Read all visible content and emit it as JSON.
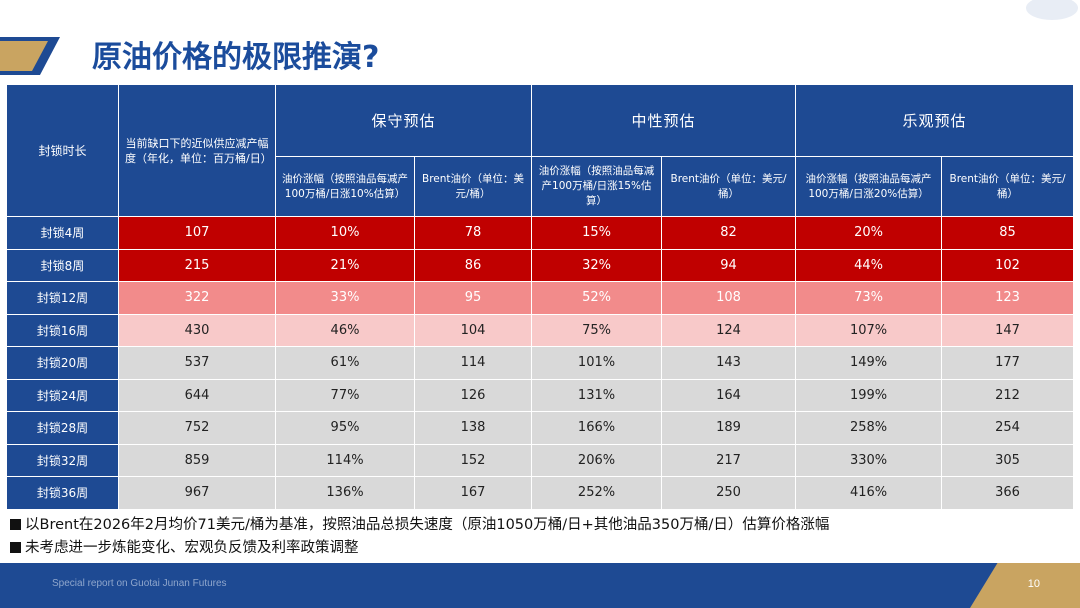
{
  "page": {
    "title": "原油价格的极限推演?",
    "footer_text": "Special report on Guotai Junan Futures",
    "page_number": "10"
  },
  "table": {
    "header_duration": "封锁时长",
    "header_supply": "当前缺口下的近似供应减产幅度（年化，单位：百万桶/日）",
    "groups": [
      "保守预估",
      "中性预估",
      "乐观预估"
    ],
    "sub_headers": [
      "油价涨幅（按照油品每减产100万桶/日涨10%估算）",
      "Brent油价（单位：美元/桶）",
      "油价涨幅（按照油品每减产100万桶/日涨15%估算）",
      "Brent油价（单位：美元/桶）",
      "油价涨幅（按照油品每减产100万桶/日涨20%估算）",
      "Brent油价（单位：美元/桶）"
    ],
    "rows": [
      {
        "label": "封锁4周",
        "cells": [
          "107",
          "10%",
          "78",
          "15%",
          "82",
          "20%",
          "85"
        ]
      },
      {
        "label": "封锁8周",
        "cells": [
          "215",
          "21%",
          "86",
          "32%",
          "94",
          "44%",
          "102"
        ]
      },
      {
        "label": "封锁12周",
        "cells": [
          "322",
          "33%",
          "95",
          "52%",
          "108",
          "73%",
          "123"
        ]
      },
      {
        "label": "封锁16周",
        "cells": [
          "430",
          "46%",
          "104",
          "75%",
          "124",
          "107%",
          "147"
        ]
      },
      {
        "label": "封锁20周",
        "cells": [
          "537",
          "61%",
          "114",
          "101%",
          "143",
          "149%",
          "177"
        ]
      },
      {
        "label": "封锁24周",
        "cells": [
          "644",
          "77%",
          "126",
          "131%",
          "164",
          "199%",
          "212"
        ]
      },
      {
        "label": "封锁28周",
        "cells": [
          "752",
          "95%",
          "138",
          "166%",
          "189",
          "258%",
          "254"
        ]
      },
      {
        "label": "封锁32周",
        "cells": [
          "859",
          "114%",
          "152",
          "206%",
          "217",
          "330%",
          "305"
        ]
      },
      {
        "label": "封锁36周",
        "cells": [
          "967",
          "136%",
          "167",
          "252%",
          "250",
          "416%",
          "366"
        ]
      }
    ]
  },
  "notes": [
    "以Brent在2026年2月均价71美元/桶为基准，按照油品总损失速度（原油1050万桶/日+其他油品350万桶/日）估算价格涨幅",
    "未考虑进一步炼能变化、宏观负反馈及利率政策调整"
  ],
  "colors": {
    "header_blue": "#1e4a93",
    "dark_red": "#c00000",
    "mid_red": "#f28b8b",
    "light_red": "#f8c9c9",
    "gray": "#d9d9d9",
    "gold": "#c9a461"
  }
}
